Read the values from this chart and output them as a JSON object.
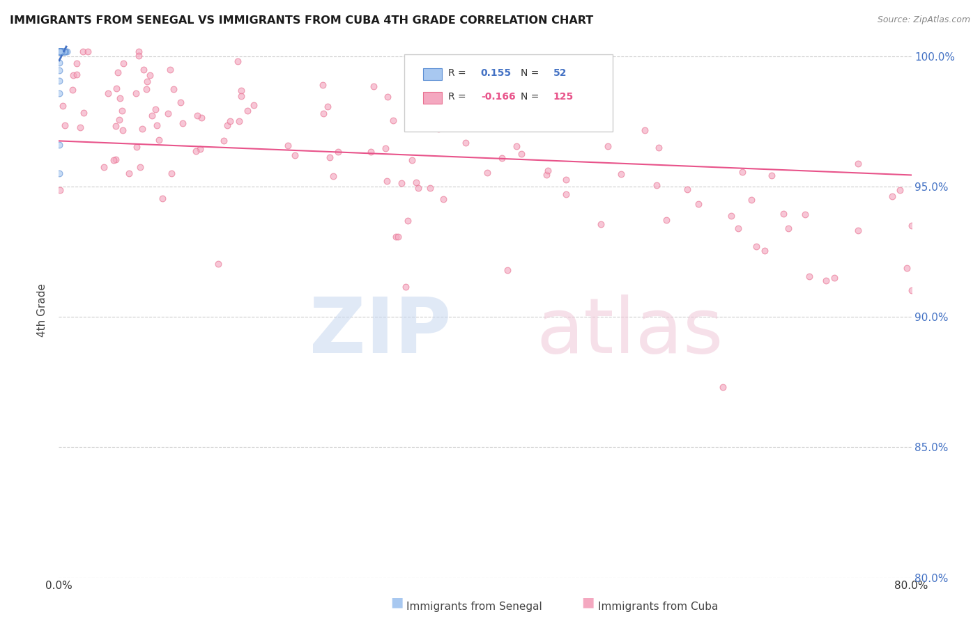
{
  "title": "IMMIGRANTS FROM SENEGAL VS IMMIGRANTS FROM CUBA 4TH GRADE CORRELATION CHART",
  "source": "Source: ZipAtlas.com",
  "ylabel": "4th Grade",
  "xmin": 0.0,
  "xmax": 0.8,
  "ymin": 0.8,
  "ymax": 1.005,
  "ytick_positions": [
    1.0,
    0.95,
    0.9,
    0.85,
    0.8
  ],
  "ytick_labels": [
    "100.0%",
    "95.0%",
    "90.0%",
    "85.0%",
    "80.0%"
  ],
  "xtick_positions": [
    0.0,
    0.1,
    0.2,
    0.3,
    0.4,
    0.5,
    0.6,
    0.7,
    0.8
  ],
  "xtick_labels": [
    "0.0%",
    "",
    "",
    "",
    "",
    "",
    "",
    "",
    "80.0%"
  ],
  "legend_R1": "0.155",
  "legend_N1": "52",
  "legend_R2": "-0.166",
  "legend_N2": "125",
  "color_senegal_fill": "#A8C8F0",
  "color_senegal_edge": "#5B8ED4",
  "color_cuba_fill": "#F4A8C0",
  "color_cuba_edge": "#E87090",
  "color_senegal_line": "#4472C4",
  "color_cuba_line": "#E8538A",
  "marker_size": 40,
  "marker_alpha": 0.65,
  "grid_color": "#CCCCCC",
  "right_axis_color": "#4472C4"
}
